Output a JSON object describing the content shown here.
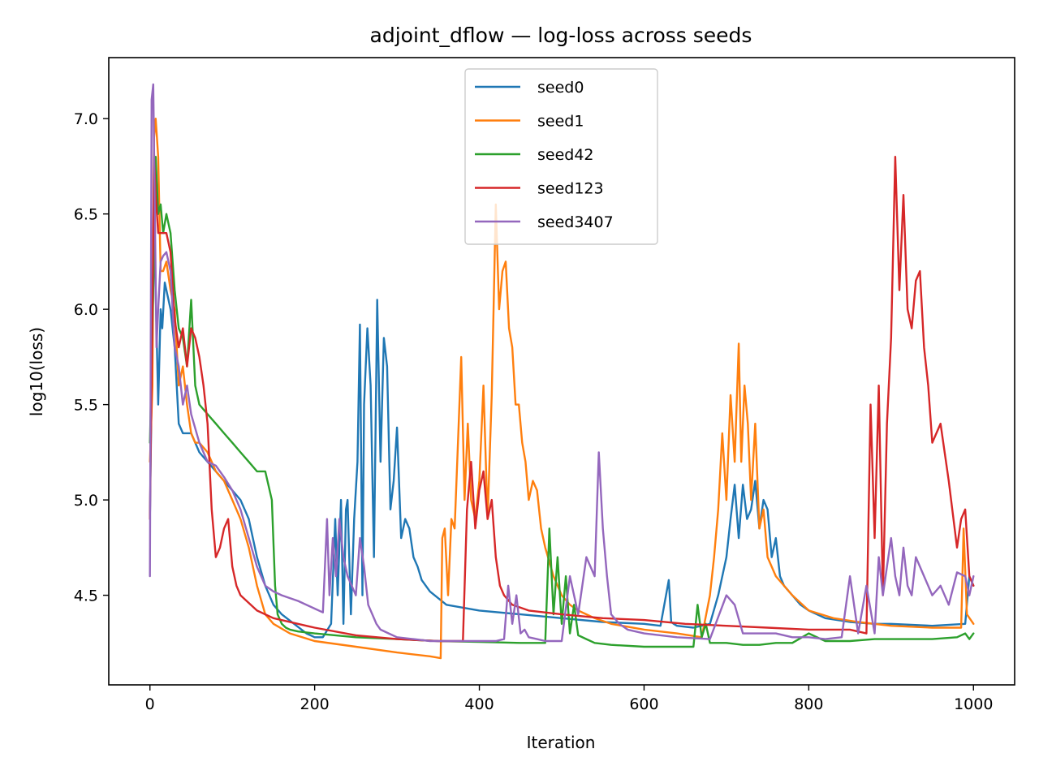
{
  "chart_data": {
    "type": "line",
    "title": "adjoint_dflow — log-loss across seeds",
    "xlabel": "Iteration",
    "ylabel": "log10(loss)",
    "xlim": [
      -50,
      1050
    ],
    "ylim": [
      4.03,
      7.32
    ],
    "xticks": [
      0,
      200,
      400,
      600,
      800,
      1000
    ],
    "yticks": [
      4.5,
      5.0,
      5.5,
      6.0,
      6.5,
      7.0
    ],
    "xtick_labels": [
      "0",
      "200",
      "400",
      "600",
      "800",
      "1000"
    ],
    "ytick_labels": [
      "4.5",
      "5.0",
      "5.5",
      "6.0",
      "6.5",
      "7.0"
    ],
    "grid": false,
    "legend": {
      "position": "top-center"
    },
    "series": [
      {
        "name": "seed0",
        "color": "#1f77b4",
        "x": [
          0,
          3,
          5,
          7,
          10,
          13,
          15,
          18,
          20,
          25,
          30,
          35,
          40,
          50,
          60,
          70,
          80,
          90,
          100,
          110,
          120,
          125,
          130,
          140,
          150,
          160,
          175,
          190,
          200,
          210,
          220,
          225,
          228,
          232,
          235,
          238,
          240,
          244,
          248,
          252,
          255,
          258,
          260,
          264,
          268,
          272,
          276,
          280,
          284,
          288,
          292,
          296,
          300,
          305,
          310,
          315,
          320,
          325,
          330,
          340,
          360,
          400,
          450,
          500,
          550,
          600,
          620,
          630,
          633,
          636,
          640,
          660,
          680,
          690,
          700,
          705,
          710,
          715,
          720,
          725,
          730,
          735,
          740,
          745,
          750,
          755,
          760,
          765,
          770,
          780,
          790,
          800,
          820,
          850,
          880,
          900,
          950,
          990,
          995,
          1000
        ],
        "y": [
          4.9,
          5.9,
          6.4,
          6.1,
          5.5,
          6.0,
          5.9,
          6.14,
          6.1,
          6.0,
          5.8,
          5.4,
          5.35,
          5.35,
          5.25,
          5.2,
          5.15,
          5.1,
          5.05,
          5.0,
          4.9,
          4.8,
          4.7,
          4.55,
          4.45,
          4.4,
          4.35,
          4.3,
          4.28,
          4.28,
          4.35,
          4.9,
          4.5,
          5.0,
          4.35,
          4.95,
          5.0,
          4.4,
          4.9,
          5.2,
          5.92,
          4.5,
          5.5,
          5.9,
          5.6,
          4.7,
          6.05,
          5.2,
          5.85,
          5.7,
          4.95,
          5.1,
          5.38,
          4.8,
          4.9,
          4.85,
          4.7,
          4.65,
          4.58,
          4.52,
          4.45,
          4.42,
          4.4,
          4.38,
          4.36,
          4.35,
          4.34,
          4.58,
          4.36,
          4.35,
          4.34,
          4.33,
          4.35,
          4.5,
          4.7,
          4.9,
          5.08,
          4.8,
          5.08,
          4.9,
          4.95,
          5.1,
          4.85,
          5.0,
          4.95,
          4.7,
          4.8,
          4.6,
          4.55,
          4.5,
          4.45,
          4.42,
          4.38,
          4.36,
          4.35,
          4.35,
          4.34,
          4.35,
          4.6,
          4.55
        ]
      },
      {
        "name": "seed1",
        "color": "#ff7f0e",
        "x": [
          0,
          3,
          5,
          7,
          10,
          13,
          16,
          20,
          25,
          30,
          35,
          40,
          45,
          50,
          55,
          60,
          70,
          80,
          90,
          100,
          110,
          120,
          130,
          140,
          150,
          170,
          200,
          250,
          300,
          340,
          353,
          355,
          358,
          362,
          366,
          370,
          374,
          378,
          382,
          386,
          390,
          395,
          400,
          405,
          410,
          415,
          420,
          424,
          428,
          432,
          436,
          440,
          444,
          448,
          452,
          456,
          460,
          465,
          470,
          475,
          480,
          490,
          500,
          510,
          520,
          540,
          560,
          600,
          640,
          670,
          680,
          685,
          690,
          695,
          700,
          705,
          710,
          715,
          718,
          722,
          726,
          730,
          735,
          740,
          745,
          750,
          760,
          780,
          800,
          830,
          860,
          900,
          950,
          985,
          988,
          992,
          1000
        ],
        "y": [
          5.2,
          5.6,
          6.9,
          7.0,
          6.8,
          6.2,
          6.2,
          6.25,
          6.1,
          6.0,
          5.6,
          5.7,
          5.5,
          5.35,
          5.3,
          5.3,
          5.25,
          5.15,
          5.1,
          5.0,
          4.9,
          4.75,
          4.55,
          4.4,
          4.35,
          4.3,
          4.26,
          4.23,
          4.2,
          4.18,
          4.17,
          4.8,
          4.85,
          4.5,
          4.9,
          4.85,
          5.3,
          5.75,
          5.0,
          5.4,
          5.0,
          4.9,
          5.1,
          5.6,
          4.9,
          5.55,
          6.55,
          6.0,
          6.2,
          6.25,
          5.9,
          5.8,
          5.5,
          5.5,
          5.3,
          5.2,
          5.0,
          5.1,
          5.05,
          4.85,
          4.75,
          4.6,
          4.5,
          4.45,
          4.42,
          4.38,
          4.35,
          4.32,
          4.3,
          4.28,
          4.5,
          4.7,
          4.95,
          5.35,
          5.0,
          5.55,
          5.2,
          5.82,
          5.2,
          5.6,
          5.4,
          5.0,
          5.4,
          4.85,
          4.95,
          4.7,
          4.6,
          4.5,
          4.42,
          4.38,
          4.36,
          4.34,
          4.33,
          4.33,
          4.85,
          4.4,
          4.35
        ]
      },
      {
        "name": "seed42",
        "color": "#2ca02c",
        "x": [
          0,
          3,
          5,
          7,
          10,
          13,
          16,
          20,
          25,
          30,
          35,
          40,
          45,
          50,
          55,
          60,
          70,
          80,
          90,
          100,
          110,
          120,
          130,
          140,
          148,
          152,
          155,
          160,
          165,
          170,
          180,
          200,
          250,
          300,
          350,
          400,
          450,
          480,
          485,
          490,
          495,
          500,
          505,
          510,
          515,
          520,
          530,
          540,
          560,
          600,
          640,
          660,
          665,
          670,
          675,
          680,
          700,
          720,
          740,
          760,
          780,
          800,
          820,
          850,
          880,
          900,
          950,
          980,
          990,
          995,
          1000
        ],
        "y": [
          5.3,
          5.9,
          6.3,
          6.8,
          6.5,
          6.55,
          6.4,
          6.5,
          6.4,
          6.1,
          5.9,
          5.85,
          5.7,
          6.05,
          5.6,
          5.5,
          5.45,
          5.4,
          5.35,
          5.3,
          5.25,
          5.2,
          5.15,
          5.15,
          5.0,
          4.55,
          4.4,
          4.35,
          4.33,
          4.32,
          4.31,
          4.3,
          4.28,
          4.27,
          4.26,
          4.255,
          4.25,
          4.25,
          4.85,
          4.4,
          4.7,
          4.35,
          4.6,
          4.3,
          4.45,
          4.29,
          4.27,
          4.25,
          4.24,
          4.23,
          4.23,
          4.23,
          4.45,
          4.28,
          4.35,
          4.25,
          4.25,
          4.24,
          4.24,
          4.25,
          4.25,
          4.3,
          4.26,
          4.26,
          4.27,
          4.27,
          4.27,
          4.28,
          4.3,
          4.27,
          4.3
        ]
      },
      {
        "name": "seed123",
        "color": "#d62728",
        "x": [
          0,
          3,
          5,
          7,
          10,
          13,
          16,
          20,
          25,
          30,
          35,
          40,
          45,
          50,
          55,
          60,
          65,
          70,
          75,
          80,
          85,
          90,
          95,
          100,
          105,
          110,
          130,
          150,
          200,
          250,
          300,
          350,
          380,
          385,
          390,
          395,
          400,
          405,
          410,
          415,
          420,
          425,
          430,
          440,
          460,
          500,
          550,
          600,
          650,
          700,
          750,
          800,
          850,
          870,
          875,
          880,
          885,
          890,
          895,
          900,
          905,
          910,
          915,
          920,
          925,
          930,
          935,
          940,
          945,
          950,
          960,
          970,
          980,
          985,
          990,
          995,
          1000
        ],
        "y": [
          4.9,
          6.0,
          6.8,
          6.6,
          6.4,
          6.4,
          6.4,
          6.4,
          6.3,
          5.95,
          5.8,
          5.9,
          5.7,
          5.9,
          5.85,
          5.75,
          5.6,
          5.4,
          4.95,
          4.7,
          4.75,
          4.85,
          4.9,
          4.65,
          4.55,
          4.5,
          4.42,
          4.38,
          4.33,
          4.29,
          4.27,
          4.26,
          4.26,
          4.95,
          5.2,
          4.85,
          5.05,
          5.15,
          4.9,
          5.0,
          4.7,
          4.55,
          4.5,
          4.45,
          4.42,
          4.4,
          4.38,
          4.37,
          4.35,
          4.34,
          4.33,
          4.32,
          4.32,
          4.3,
          5.5,
          4.8,
          5.6,
          4.5,
          5.4,
          5.85,
          6.8,
          6.1,
          6.6,
          6.0,
          5.9,
          6.15,
          6.2,
          5.8,
          5.6,
          5.3,
          5.4,
          5.1,
          4.75,
          4.9,
          4.95,
          4.6,
          4.55
        ]
      },
      {
        "name": "seed3407",
        "color": "#9467bd",
        "x": [
          0,
          2,
          4,
          6,
          8,
          10,
          13,
          16,
          20,
          25,
          30,
          35,
          40,
          45,
          50,
          60,
          70,
          80,
          90,
          100,
          110,
          120,
          130,
          140,
          150,
          160,
          180,
          200,
          210,
          215,
          218,
          222,
          226,
          230,
          235,
          240,
          245,
          250,
          255,
          260,
          265,
          270,
          275,
          280,
          290,
          300,
          320,
          340,
          360,
          380,
          400,
          420,
          430,
          435,
          440,
          445,
          450,
          455,
          460,
          470,
          480,
          500,
          510,
          520,
          530,
          540,
          545,
          550,
          555,
          560,
          570,
          580,
          600,
          640,
          680,
          700,
          710,
          720,
          740,
          760,
          780,
          800,
          820,
          840,
          850,
          860,
          870,
          880,
          885,
          890,
          895,
          900,
          905,
          910,
          915,
          920,
          925,
          930,
          940,
          950,
          960,
          970,
          980,
          990,
          995,
          1000
        ],
        "y": [
          4.6,
          7.1,
          7.18,
          6.5,
          5.8,
          6.0,
          6.25,
          6.28,
          6.3,
          6.2,
          5.8,
          5.7,
          5.5,
          5.6,
          5.45,
          5.3,
          5.2,
          5.18,
          5.12,
          5.05,
          4.95,
          4.8,
          4.65,
          4.55,
          4.52,
          4.5,
          4.47,
          4.43,
          4.41,
          4.9,
          4.5,
          4.8,
          4.6,
          4.9,
          4.7,
          4.6,
          4.55,
          4.5,
          4.8,
          4.65,
          4.45,
          4.4,
          4.35,
          4.32,
          4.3,
          4.28,
          4.27,
          4.26,
          4.26,
          4.26,
          4.26,
          4.26,
          4.27,
          4.55,
          4.35,
          4.5,
          4.3,
          4.32,
          4.28,
          4.27,
          4.26,
          4.26,
          4.6,
          4.4,
          4.7,
          4.6,
          5.25,
          4.85,
          4.6,
          4.4,
          4.35,
          4.32,
          4.3,
          4.28,
          4.27,
          4.5,
          4.45,
          4.3,
          4.3,
          4.3,
          4.28,
          4.28,
          4.27,
          4.28,
          4.6,
          4.3,
          4.55,
          4.3,
          4.7,
          4.5,
          4.65,
          4.8,
          4.6,
          4.5,
          4.75,
          4.55,
          4.5,
          4.7,
          4.6,
          4.5,
          4.55,
          4.45,
          4.62,
          4.6,
          4.5,
          4.6
        ]
      }
    ]
  }
}
